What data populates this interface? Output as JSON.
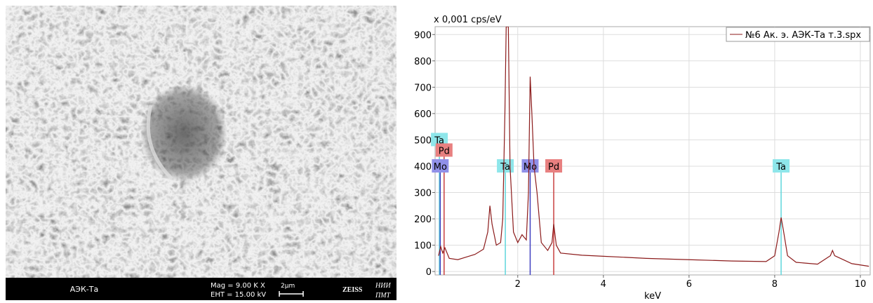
{
  "image_panel": {
    "sample": "АЭК-Та",
    "mag": "Mag =  9.00 K X",
    "eht": "EHT = 15.00 kV",
    "scale": "2µm",
    "brand": "ZEISS",
    "institute": [
      "НИИ",
      "ПМТ"
    ]
  },
  "chart_data": {
    "type": "line",
    "ylabel": "x 0,001 cps/eV",
    "xlabel": "keV",
    "grid": true,
    "legend": "top-right",
    "xlim": [
      0.07,
      10.23
    ],
    "ylim": [
      -13,
      930
    ],
    "xticks": [
      2,
      4,
      6,
      8,
      10
    ],
    "yticks": [
      0,
      100,
      200,
      300,
      400,
      500,
      600,
      700,
      800,
      900
    ],
    "x": [
      0.15,
      0.2,
      0.25,
      0.3,
      0.4,
      0.6,
      0.8,
      1.0,
      1.2,
      1.3,
      1.35,
      1.4,
      1.5,
      1.6,
      1.65,
      1.7,
      1.73,
      1.78,
      1.82,
      1.9,
      2.0,
      2.1,
      2.2,
      2.25,
      2.29,
      2.33,
      2.38,
      2.45,
      2.55,
      2.7,
      2.8,
      2.84,
      2.9,
      3.0,
      3.5,
      4.0,
      5.0,
      6.0,
      7.0,
      7.8,
      8.0,
      8.1,
      8.15,
      8.2,
      8.3,
      8.5,
      9.0,
      9.3,
      9.35,
      9.4,
      9.6,
      9.8,
      10.2
    ],
    "series": [
      {
        "name": "№6 Ак. э. АЭК-Та т.3.spx",
        "color": "#8b1a1a",
        "values": [
          60,
          95,
          70,
          90,
          50,
          45,
          55,
          65,
          85,
          150,
          250,
          180,
          100,
          110,
          200,
          600,
          930,
          930,
          400,
          150,
          110,
          140,
          120,
          300,
          740,
          600,
          400,
          300,
          110,
          80,
          110,
          180,
          100,
          70,
          62,
          58,
          50,
          45,
          40,
          38,
          60,
          150,
          205,
          160,
          60,
          35,
          28,
          60,
          80,
          60,
          45,
          30,
          20
        ]
      }
    ],
    "markers": [
      {
        "label": "Ta",
        "x": 0.17,
        "y": 500,
        "color": "#5fd6dc",
        "label_color": "#8ee6ea"
      },
      {
        "label": "Pd",
        "x": 0.28,
        "y": 460,
        "color": "#c84040",
        "label_color": "#e88080"
      },
      {
        "label": "Mo",
        "x": 0.19,
        "y": 400,
        "color": "#4040c0",
        "label_color": "#9090e8"
      },
      {
        "label": "Ta",
        "x": 1.71,
        "y": 400,
        "color": "#5fd6dc",
        "label_color": "#8ee6ea"
      },
      {
        "label": "Mo",
        "x": 2.29,
        "y": 400,
        "color": "#4040c0",
        "label_color": "#9090e8"
      },
      {
        "label": "Pd",
        "x": 2.84,
        "y": 400,
        "color": "#c84040",
        "label_color": "#e88080"
      },
      {
        "label": "Ta",
        "x": 8.15,
        "y": 400,
        "color": "#5fd6dc",
        "label_color": "#8ee6ea"
      }
    ]
  }
}
